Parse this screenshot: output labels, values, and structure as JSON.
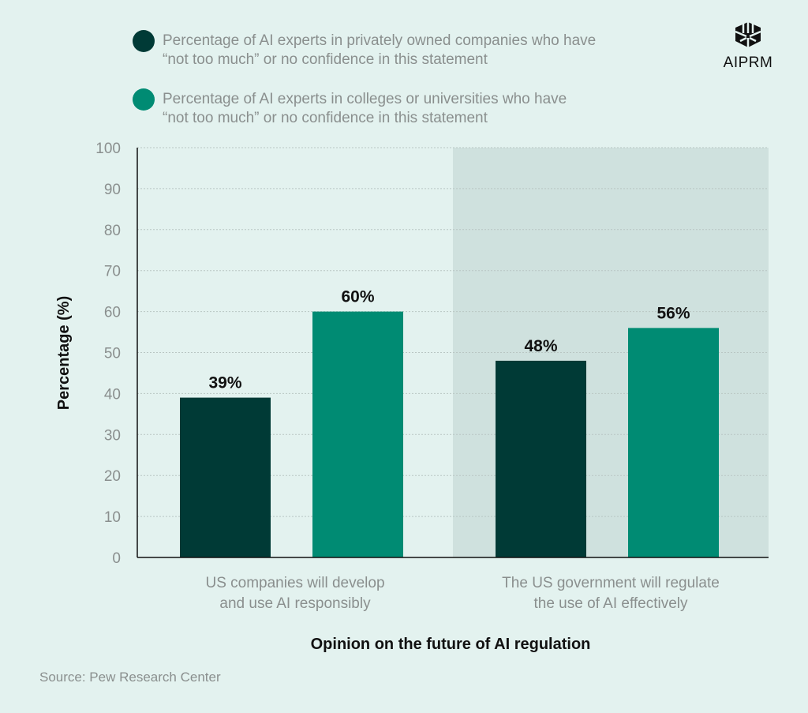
{
  "chart_data": {
    "type": "bar",
    "categories": [
      "US companies will develop and use AI responsibly",
      "The US government will regulate the use of AI effectively"
    ],
    "category_lines": [
      [
        "US companies will develop",
        "and use AI responsibly"
      ],
      [
        "The US government will regulate",
        "the use of AI effectively"
      ]
    ],
    "series": [
      {
        "name": "Percentage of AI experts in privately owned companies who have “not too much” or no confidence in this statement",
        "name_lines": [
          "Percentage of AI experts in privately owned companies who have",
          "“not too much” or no confidence in this statement"
        ],
        "values": [
          39,
          48
        ],
        "labels": [
          "39%",
          "48%"
        ],
        "color": "#003a36"
      },
      {
        "name": "Percentage of AI experts in colleges or universities who have “not too much” or no confidence in this statement",
        "name_lines": [
          "Percentage of AI experts in colleges or universities who have",
          "“not too much” or no confidence in this statement"
        ],
        "values": [
          60,
          56
        ],
        "labels": [
          "60%",
          "56%"
        ],
        "color": "#008b73"
      }
    ],
    "xlabel": "Opinion on the future of AI regulation",
    "ylabel": "Percentage (%)",
    "ylim": [
      0,
      100
    ],
    "yticks": [
      0,
      10,
      20,
      30,
      40,
      50,
      60,
      70,
      80,
      90,
      100
    ],
    "grid": true,
    "legend": "top-left",
    "highlight_color": "#cfe1de"
  },
  "logo": {
    "text": "AIPRM"
  },
  "source": "Source: Pew Research Center"
}
